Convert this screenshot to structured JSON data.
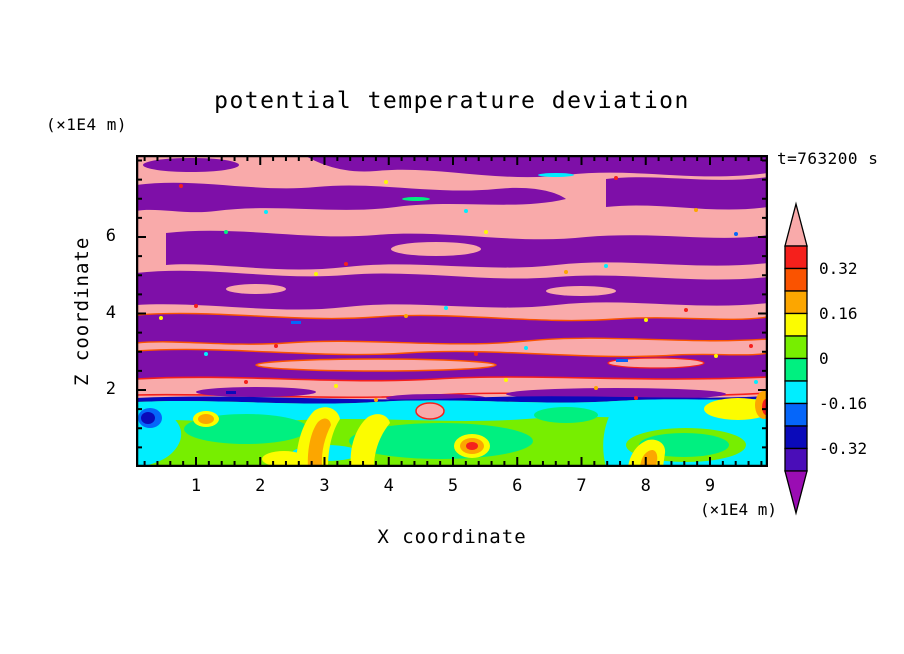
{
  "title": "potential temperature deviation",
  "annotations": {
    "time": "t=763200 s",
    "y_axis_unit": "(×1E4 m)",
    "x_axis_unit": "(×1E4 m)"
  },
  "axes": {
    "x": {
      "title": "X coordinate",
      "min": 0,
      "max": 9.9,
      "major_ticks": [
        1,
        2,
        3,
        4,
        5,
        6,
        7,
        8,
        9
      ],
      "minor_step": 0.2
    },
    "y": {
      "title": "Z coordinate",
      "min": 0,
      "max": 8.1,
      "major_ticks": [
        2,
        4,
        6
      ],
      "minor_step": 0.5
    }
  },
  "colorbar": {
    "over_color": "#F9AAAA",
    "under_color": "#9A0DB3",
    "cells": [
      {
        "color": "#F5201C",
        "range": "0.32 to 0.40"
      },
      {
        "color": "#FA5300",
        "range": "0.24 to 0.32"
      },
      {
        "color": "#FCA600",
        "range": "0.16 to 0.24"
      },
      {
        "color": "#FCFC00",
        "range": "0.08 to 0.16"
      },
      {
        "color": "#77EE00",
        "range": "0 to 0.08"
      },
      {
        "color": "#00F080",
        "range": "-0.08 to 0"
      },
      {
        "color": "#00EEFF",
        "range": "-0.16 to -0.08"
      },
      {
        "color": "#0566FA",
        "range": "-0.24 to -0.16"
      },
      {
        "color": "#0A0ABA",
        "range": "-0.32 to -0.24"
      },
      {
        "color": "#4A0DB8",
        "range": "-0.40 to -0.32"
      }
    ],
    "labels": [
      {
        "text": "0.32",
        "boundary_index": 1
      },
      {
        "text": "0.16",
        "boundary_index": 3
      },
      {
        "text": "0",
        "boundary_index": 5
      },
      {
        "text": "-0.16",
        "boundary_index": 7
      },
      {
        "text": "-0.32",
        "boundary_index": 9
      }
    ]
  },
  "chart_data": {
    "type": "heatmap",
    "title": "potential temperature deviation",
    "xlabel": "X coordinate (×1E4 m)",
    "ylabel": "Z coordinate (×1E4 m)",
    "time_annotation": "t=763200 s",
    "x_range": [
      0,
      9.9
    ],
    "y_range": [
      0,
      8.1
    ],
    "x_tick_values": [
      1,
      2,
      3,
      4,
      5,
      6,
      7,
      8,
      9
    ],
    "y_tick_values": [
      2,
      4,
      6
    ],
    "grid": false,
    "legend_position": "right colorbar with over/under arrows",
    "contour_levels": [
      -0.4,
      -0.32,
      -0.24,
      -0.16,
      -0.08,
      0,
      0.08,
      0.16,
      0.24,
      0.32,
      0.4
    ],
    "labeled_levels": [
      0.32,
      0.16,
      0,
      -0.16,
      -0.32
    ],
    "palette_over_to_under": [
      "#F9AAAA",
      "#F5201C",
      "#FA5300",
      "#FCA600",
      "#FCFC00",
      "#77EE00",
      "#00F080",
      "#00EEFF",
      "#0566FA",
      "#0A0ABA",
      "#4A0DB8",
      "#9A0DB3"
    ],
    "field_colors_in_plot": {
      "saturated_positive_pink": "#F9AAAA",
      "saturated_negative_purple": "#7E0FA8"
    },
    "field_description": {
      "upper_region": "z ≈ 2 to 8 (×1E4 m): stratified gravity-wave layers saturating the color scale — alternating horizontal wavy bands of deviation > +0.40 (pink) and < -0.40 (purple); band interfaces between z ≈ 2 and 4 show thin rainbow fringes (red/orange/yellow/cyan/blue) where the deviation passes through intermediate values",
      "interface": "thin navy/dark-blue and purple strip at z ≈ 2 capping the boundary layer, with a cyan (-0.16 to -0.08) layer just beneath",
      "lower_region": "z ≈ 0 to 2: convective boundary layer, mostly -0.16 to +0.08 (cyan/spring-green/chartreuse), warm plumes up to ≈ +0.3 (yellow/orange) near x ≈ 2.8, 3, 8, a red +0.32 vortex core near x ≈ 5.3, z ≈ 0.6, and a cold pocket below -0.24 (blue/navy) near x ≈ 0.2, z ≈ 1.3"
    }
  }
}
